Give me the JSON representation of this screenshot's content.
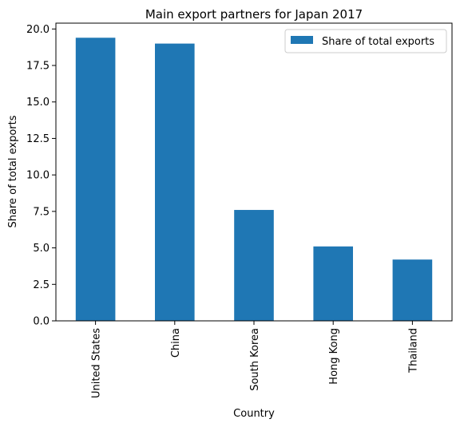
{
  "chart_data": {
    "type": "bar",
    "title": "Main export partners for Japan 2017",
    "xlabel": "Country",
    "ylabel": "Share of total exports",
    "categories": [
      "United States",
      "China",
      "South Korea",
      "Hong Kong",
      "Thailand"
    ],
    "series": [
      {
        "name": "Share of total exports",
        "color": "#1f77b4",
        "values": [
          19.4,
          19.0,
          7.6,
          5.1,
          4.2
        ]
      }
    ],
    "ylim": [
      0,
      20.4
    ],
    "yticks": [
      "0.0",
      "2.5",
      "5.0",
      "7.5",
      "10.0",
      "12.5",
      "15.0",
      "17.5",
      "20.0"
    ],
    "grid": false,
    "legend_position": "top-right"
  }
}
